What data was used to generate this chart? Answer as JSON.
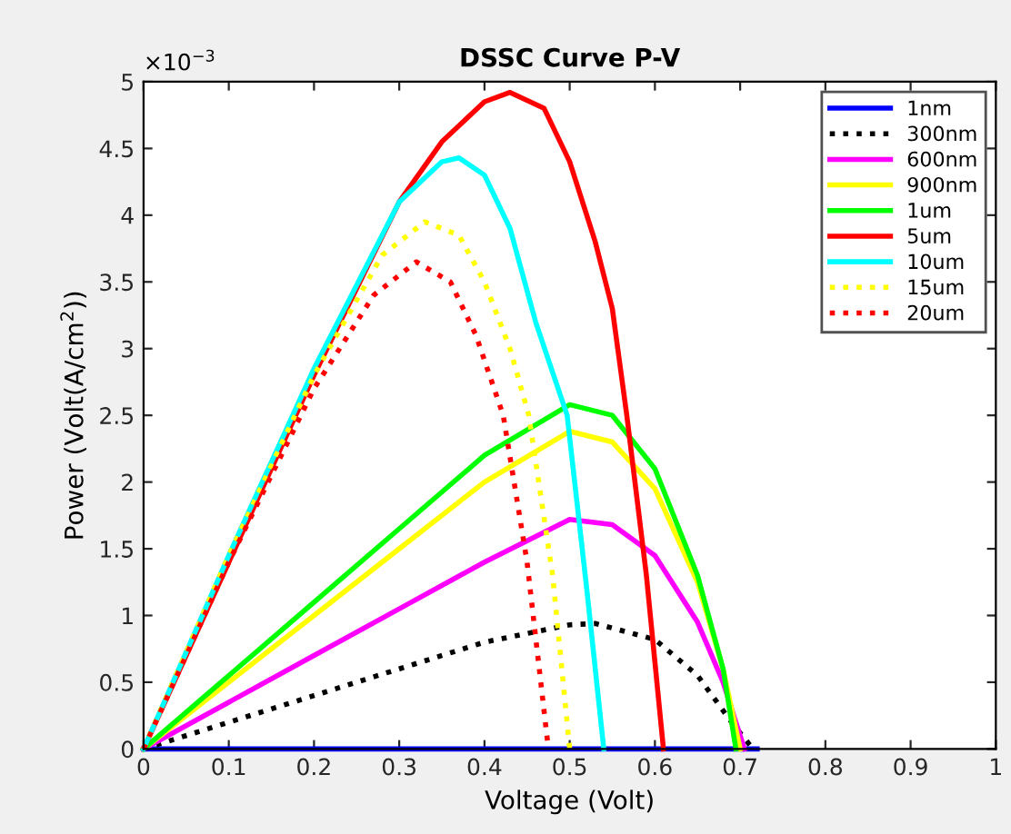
{
  "chart_data": {
    "type": "line",
    "title": "DSSC Curve P-V",
    "xlabel": "Voltage (Volt)",
    "ylabel": "Power (Volt(A/cm$^{2}$))",
    "annotations": [
      "×10$^{−3}$"
    ],
    "xlim": [
      0,
      1
    ],
    "ylim": [
      0,
      5
    ],
    "xticks": [
      0,
      0.1,
      0.2,
      0.3,
      0.4,
      0.5,
      0.6,
      0.7,
      0.8,
      0.9,
      1
    ],
    "yticks": [
      0,
      0.5,
      1,
      1.5,
      2,
      2.5,
      3,
      3.5,
      4,
      4.5,
      5
    ],
    "grid": false,
    "legend": "top right",
    "series": [
      {
        "name": "1nm",
        "color": "#0000ff",
        "line_style": "solid",
        "x": [
          0,
          0.72
        ],
        "values": [
          0,
          0
        ]
      },
      {
        "name": "300nm",
        "color": "#000000",
        "line_style": "dotted",
        "x": [
          0,
          0.1,
          0.2,
          0.3,
          0.4,
          0.5,
          0.53,
          0.6,
          0.65,
          0.69,
          0.715
        ],
        "values": [
          0,
          0.2,
          0.4,
          0.6,
          0.8,
          0.93,
          0.94,
          0.82,
          0.55,
          0.2,
          0
        ]
      },
      {
        "name": "600nm",
        "color": "#ff00ff",
        "line_style": "solid",
        "x": [
          0,
          0.1,
          0.2,
          0.3,
          0.4,
          0.5,
          0.55,
          0.6,
          0.65,
          0.68,
          0.705
        ],
        "values": [
          0,
          0.35,
          0.7,
          1.05,
          1.4,
          1.72,
          1.68,
          1.45,
          0.95,
          0.5,
          0
        ]
      },
      {
        "name": "900nm",
        "color": "#ffff00",
        "line_style": "solid",
        "x": [
          0,
          0.1,
          0.2,
          0.3,
          0.4,
          0.5,
          0.55,
          0.6,
          0.65,
          0.68,
          0.7
        ],
        "values": [
          0,
          0.5,
          1.0,
          1.5,
          2.0,
          2.38,
          2.3,
          1.95,
          1.25,
          0.6,
          0
        ]
      },
      {
        "name": "1um",
        "color": "#00ff00",
        "line_style": "solid",
        "x": [
          0,
          0.1,
          0.2,
          0.3,
          0.4,
          0.5,
          0.55,
          0.6,
          0.65,
          0.68,
          0.695
        ],
        "values": [
          0,
          0.55,
          1.1,
          1.65,
          2.2,
          2.58,
          2.5,
          2.1,
          1.3,
          0.6,
          0
        ]
      },
      {
        "name": "5um",
        "color": "#ff0000",
        "line_style": "solid",
        "x": [
          0,
          0.1,
          0.2,
          0.3,
          0.35,
          0.4,
          0.43,
          0.47,
          0.5,
          0.53,
          0.55,
          0.567,
          0.59,
          0.61
        ],
        "values": [
          0,
          1.4,
          2.8,
          4.1,
          4.55,
          4.85,
          4.92,
          4.8,
          4.4,
          3.8,
          3.3,
          2.5,
          1.3,
          0
        ]
      },
      {
        "name": "10um",
        "color": "#00ffff",
        "line_style": "solid",
        "x": [
          0,
          0.1,
          0.2,
          0.3,
          0.35,
          0.37,
          0.4,
          0.43,
          0.46,
          0.497,
          0.52,
          0.54
        ],
        "values": [
          0,
          1.45,
          2.85,
          4.1,
          4.4,
          4.43,
          4.3,
          3.9,
          3.2,
          2.5,
          1.2,
          0
        ]
      },
      {
        "name": "15um",
        "color": "#ffff00",
        "line_style": "dotted",
        "x": [
          0,
          0.1,
          0.2,
          0.28,
          0.33,
          0.37,
          0.4,
          0.43,
          0.452,
          0.48,
          0.5
        ],
        "values": [
          0,
          1.45,
          2.8,
          3.7,
          3.95,
          3.85,
          3.5,
          3.0,
          2.5,
          1.3,
          0
        ]
      },
      {
        "name": "20um",
        "color": "#ff0000",
        "line_style": "dotted",
        "x": [
          0,
          0.1,
          0.2,
          0.27,
          0.32,
          0.36,
          0.39,
          0.422,
          0.45,
          0.475
        ],
        "values": [
          0,
          1.4,
          2.7,
          3.4,
          3.65,
          3.5,
          3.1,
          2.5,
          1.4,
          0
        ]
      }
    ]
  }
}
